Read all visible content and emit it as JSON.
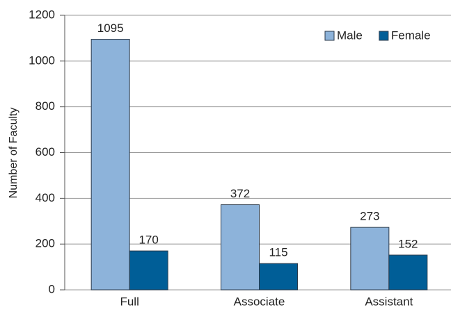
{
  "chart_data": {
    "type": "bar",
    "y_label": "Number of Faculty",
    "categories": [
      "Full",
      "Associate",
      "Assistant"
    ],
    "series": [
      {
        "name": "Male",
        "color": "#8db3da",
        "values": [
          1095,
          372,
          273
        ]
      },
      {
        "name": "Female",
        "color": "#005e97",
        "values": [
          170,
          115,
          152
        ]
      }
    ],
    "ylim": [
      0,
      1200
    ],
    "yticks": [
      0,
      200,
      400,
      600,
      800,
      1000,
      1200
    ],
    "grid": true,
    "legend": "top-right"
  }
}
